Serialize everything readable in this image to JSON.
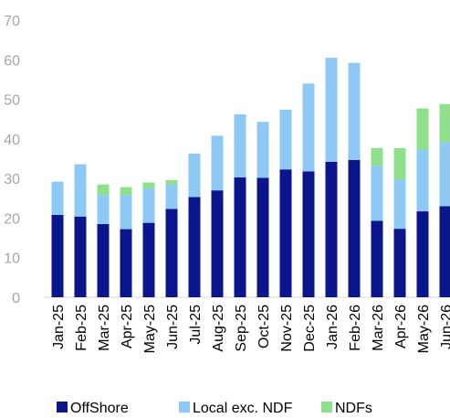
{
  "chart_data": {
    "type": "stacked_bar",
    "categories": [
      "Jan-25",
      "Feb-25",
      "Mar-25",
      "Apr-25",
      "May-25",
      "Jun-25",
      "Jul-25",
      "Aug-25",
      "Sep-25",
      "Oct-25",
      "Nov-25",
      "Dec-25",
      "Jan-26",
      "Feb-26",
      "Mar-26",
      "Apr-26",
      "May-26",
      "Jun-26"
    ],
    "series": [
      {
        "name": "OffShore",
        "color": "#0b168c",
        "values": [
          20.8,
          20.4,
          18.5,
          17.2,
          18.8,
          22.3,
          25.3,
          27.0,
          30.3,
          30.2,
          32.3,
          31.8,
          34.2,
          34.7,
          19.3,
          17.3,
          21.7,
          23.0
        ]
      },
      {
        "name": "Local exc. NDF",
        "color": "#8ec9f5",
        "values": [
          8.4,
          13.2,
          7.3,
          8.6,
          8.7,
          6.2,
          11.0,
          13.8,
          15.9,
          14.1,
          15.1,
          22.2,
          26.3,
          24.5,
          13.9,
          12.5,
          15.6,
          16.2
        ]
      },
      {
        "name": "NDFs",
        "color": "#8fe08a",
        "values": [
          0,
          0,
          2.7,
          2.0,
          1.5,
          1.1,
          0,
          0,
          0,
          0,
          0,
          0,
          0,
          0,
          4.5,
          7.9,
          10.4,
          9.6
        ]
      }
    ],
    "ylim": [
      0,
      70
    ],
    "yticks": [
      0,
      10,
      20,
      30,
      40,
      50,
      60,
      70
    ],
    "legend": "bottom"
  }
}
